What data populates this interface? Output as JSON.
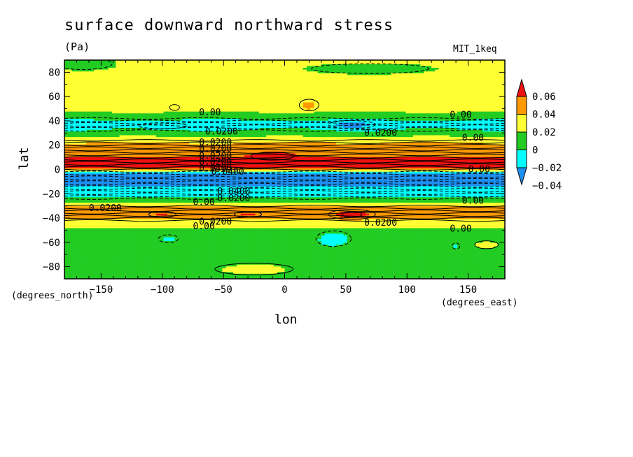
{
  "chart_data": {
    "type": "heatmap",
    "title": "surface downward northward stress",
    "units": "(Pa)",
    "model_label": "MIT_1keq",
    "xlabel": "lon",
    "ylabel": "lat",
    "x_units": "(degrees_east)",
    "y_units": "(degrees_north)",
    "xlim": [
      -180,
      180
    ],
    "ylim": [
      -90,
      90
    ],
    "x_ticks": [
      -150,
      -100,
      -50,
      0,
      50,
      100,
      150
    ],
    "x_tick_labels": [
      "−150",
      "−100",
      "−50",
      "0",
      "50",
      "100",
      "150"
    ],
    "y_ticks": [
      80,
      60,
      40,
      20,
      0,
      -20,
      -40,
      -60,
      -80
    ],
    "y_tick_labels": [
      "80",
      "60",
      "40",
      "20",
      "0",
      "−20",
      "−40",
      "−60",
      "−80"
    ],
    "colorbar": {
      "labels": [
        "0.06",
        "0.04",
        "0.02",
        "0",
        "−0.02",
        "−0.04"
      ],
      "levels": [
        -0.06,
        -0.04,
        -0.02,
        0,
        0.02,
        0.04,
        0.06
      ],
      "colors": [
        "#1e8ff0",
        "#00ffff",
        "#22cc22",
        "#ffff33",
        "#ff9900",
        "#ee1111"
      ]
    },
    "zonal_profile": {
      "lat": [
        -90,
        -75,
        -60,
        -50,
        -45,
        -40,
        -36,
        -30,
        -25,
        -18,
        -10,
        -4,
        -1,
        2,
        5,
        8,
        12,
        18,
        24,
        30,
        36,
        40,
        44,
        50,
        60,
        75,
        90
      ],
      "value": [
        -0.012,
        -0.01,
        -0.008,
        -0.002,
        0.005,
        0.02,
        0.03,
        0.02,
        -0.012,
        -0.032,
        -0.045,
        -0.05,
        0.0,
        0.06,
        0.05,
        0.045,
        0.038,
        0.03,
        0.015,
        -0.012,
        -0.028,
        -0.025,
        -0.006,
        0.004,
        0.006,
        0.004,
        0.002
      ]
    },
    "anomalies": [
      {
        "lon": -10,
        "lat": 11,
        "value": 0.062,
        "rlon": 22,
        "rlat": 4
      },
      {
        "lon": 55,
        "lat": -37,
        "value": 0.065,
        "rlon": 10,
        "rlat": 3
      },
      {
        "lon": 55,
        "lat": -37,
        "value": 0.045,
        "rlon": 24,
        "rlat": 5
      },
      {
        "lon": -100,
        "lat": -37,
        "value": 0.042,
        "rlon": 14,
        "rlat": 3
      },
      {
        "lon": -30,
        "lat": -37,
        "value": 0.042,
        "rlon": 14,
        "rlat": 3
      },
      {
        "lon": 20,
        "lat": 53,
        "value": 0.025,
        "rlon": 10,
        "rlat": 6
      },
      {
        "lon": -90,
        "lat": 51,
        "value": 0.022,
        "rlon": 5,
        "rlat": 3
      },
      {
        "lon": 55,
        "lat": 37,
        "value": -0.045,
        "rlon": 24,
        "rlat": 4
      },
      {
        "lon": -100,
        "lat": 36,
        "value": -0.03,
        "rlon": 25,
        "rlat": 3
      },
      {
        "lon": 40,
        "lat": -57,
        "value": -0.03,
        "rlon": 18,
        "rlat": 8
      },
      {
        "lon": -95,
        "lat": -57,
        "value": -0.025,
        "rlon": 10,
        "rlat": 4
      },
      {
        "lon": 140,
        "lat": -63,
        "value": -0.022,
        "rlon": 4,
        "rlat": 3
      },
      {
        "lon": -165,
        "lat": 87,
        "value": -0.02,
        "rlon": 30,
        "rlat": 6
      },
      {
        "lon": 70,
        "lat": 83,
        "value": -0.015,
        "rlon": 60,
        "rlat": 5
      },
      {
        "lon": -25,
        "lat": -82,
        "value": 0.008,
        "rlon": 40,
        "rlat": 6
      },
      {
        "lon": 165,
        "lat": -62,
        "value": 0.008,
        "rlon": 12,
        "rlat": 4
      }
    ],
    "contour_labels": [
      {
        "text": "0.00",
        "lon": -70,
        "lat": 47
      },
      {
        "text": "0.0200",
        "lon": -65,
        "lat": 31
      },
      {
        "text": "0.0200",
        "lon": -70,
        "lat": 22
      },
      {
        "text": "0.0200",
        "lon": -70,
        "lat": 17
      },
      {
        "text": "0.0200",
        "lon": -70,
        "lat": 11
      },
      {
        "text": "0.0200",
        "lon": -70,
        "lat": 6
      },
      {
        "text": "0.0400",
        "lon": -70,
        "lat": 1
      },
      {
        "text": "0.0400",
        "lon": -60,
        "lat": -2
      },
      {
        "text": "0.0400",
        "lon": -55,
        "lat": -18
      },
      {
        "text": "0.0200",
        "lon": -55,
        "lat": -24
      },
      {
        "text": "0.00",
        "lon": -75,
        "lat": -27
      },
      {
        "text": "0.0200",
        "lon": -160,
        "lat": -32
      },
      {
        "text": "0.0200",
        "lon": -70,
        "lat": -43
      },
      {
        "text": "0.00",
        "lon": -75,
        "lat": -47
      },
      {
        "text": "0.0200",
        "lon": 65,
        "lat": 30
      },
      {
        "text": "0.0200",
        "lon": 65,
        "lat": -44
      },
      {
        "text": "0.00",
        "lon": 135,
        "lat": 45
      },
      {
        "text": "0.00",
        "lon": 145,
        "lat": 26
      },
      {
        "text": "0.00",
        "lon": 145,
        "lat": -26
      },
      {
        "text": "0.00",
        "lon": 150,
        "lat": 0
      },
      {
        "text": "0.00",
        "lon": 135,
        "lat": -49
      }
    ]
  }
}
